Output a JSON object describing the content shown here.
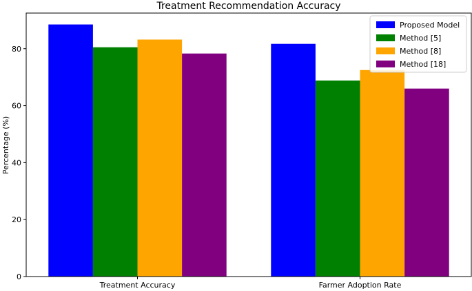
{
  "chart_data": {
    "type": "bar",
    "title": "Treatment Recommendation Accuracy",
    "xlabel": "",
    "ylabel": "Percentage (%)",
    "categories": [
      "Treatment Accuracy",
      "Farmer Adoption Rate"
    ],
    "ylim": [
      0,
      92.5
    ],
    "yticks": [
      0,
      20,
      40,
      60,
      80
    ],
    "grid": false,
    "legend_position": "top-right",
    "series": [
      {
        "name": "Proposed Model",
        "color": "#0000ff",
        "values": [
          88.5,
          81.7
        ]
      },
      {
        "name": "Method [5]",
        "color": "#008000",
        "values": [
          80.5,
          68.8
        ]
      },
      {
        "name": "Method [8]",
        "color": "#ffa500",
        "values": [
          83.2,
          72.5
        ]
      },
      {
        "name": "Method [18]",
        "color": "#800080",
        "values": [
          78.3,
          66.0
        ]
      }
    ]
  }
}
